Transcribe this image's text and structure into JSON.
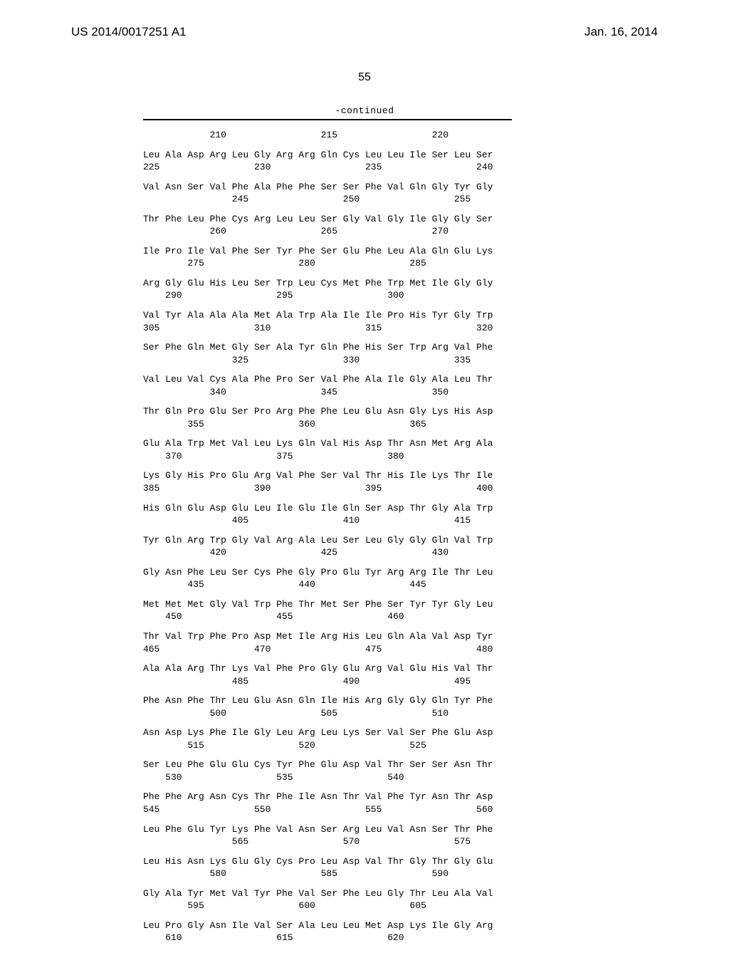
{
  "header": {
    "publication_number": "US 2014/0017251 A1",
    "date": "Jan. 16, 2014"
  },
  "page_number": "55",
  "continued_label": "-continued",
  "sequence_rows": [
    {
      "seq": "            210                 215                 220",
      "pos": ""
    },
    {
      "seq": "Leu Ala Asp Arg Leu Gly Arg Arg Gln Cys Leu Leu Ile Ser Leu Ser",
      "pos": "225                 230                 235                 240"
    },
    {
      "seq": "Val Asn Ser Val Phe Ala Phe Phe Ser Ser Phe Val Gln Gly Tyr Gly",
      "pos": "                245                 250                 255"
    },
    {
      "seq": "Thr Phe Leu Phe Cys Arg Leu Leu Ser Gly Val Gly Ile Gly Gly Ser",
      "pos": "            260                 265                 270"
    },
    {
      "seq": "Ile Pro Ile Val Phe Ser Tyr Phe Ser Glu Phe Leu Ala Gln Glu Lys",
      "pos": "        275                 280                 285"
    },
    {
      "seq": "Arg Gly Glu His Leu Ser Trp Leu Cys Met Phe Trp Met Ile Gly Gly",
      "pos": "    290                 295                 300"
    },
    {
      "seq": "Val Tyr Ala Ala Ala Met Ala Trp Ala Ile Ile Pro His Tyr Gly Trp",
      "pos": "305                 310                 315                 320"
    },
    {
      "seq": "Ser Phe Gln Met Gly Ser Ala Tyr Gln Phe His Ser Trp Arg Val Phe",
      "pos": "                325                 330                 335"
    },
    {
      "seq": "Val Leu Val Cys Ala Phe Pro Ser Val Phe Ala Ile Gly Ala Leu Thr",
      "pos": "            340                 345                 350"
    },
    {
      "seq": "Thr Gln Pro Glu Ser Pro Arg Phe Phe Leu Glu Asn Gly Lys His Asp",
      "pos": "        355                 360                 365"
    },
    {
      "seq": "Glu Ala Trp Met Val Leu Lys Gln Val His Asp Thr Asn Met Arg Ala",
      "pos": "    370                 375                 380"
    },
    {
      "seq": "Lys Gly His Pro Glu Arg Val Phe Ser Val Thr His Ile Lys Thr Ile",
      "pos": "385                 390                 395                 400"
    },
    {
      "seq": "His Gln Glu Asp Glu Leu Ile Glu Ile Gln Ser Asp Thr Gly Ala Trp",
      "pos": "                405                 410                 415"
    },
    {
      "seq": "Tyr Gln Arg Trp Gly Val Arg Ala Leu Ser Leu Gly Gly Gln Val Trp",
      "pos": "            420                 425                 430"
    },
    {
      "seq": "Gly Asn Phe Leu Ser Cys Phe Gly Pro Glu Tyr Arg Arg Ile Thr Leu",
      "pos": "        435                 440                 445"
    },
    {
      "seq": "Met Met Met Gly Val Trp Phe Thr Met Ser Phe Ser Tyr Tyr Gly Leu",
      "pos": "    450                 455                 460"
    },
    {
      "seq": "Thr Val Trp Phe Pro Asp Met Ile Arg His Leu Gln Ala Val Asp Tyr",
      "pos": "465                 470                 475                 480"
    },
    {
      "seq": "Ala Ala Arg Thr Lys Val Phe Pro Gly Glu Arg Val Glu His Val Thr",
      "pos": "                485                 490                 495"
    },
    {
      "seq": "Phe Asn Phe Thr Leu Glu Asn Gln Ile His Arg Gly Gly Gln Tyr Phe",
      "pos": "            500                 505                 510"
    },
    {
      "seq": "Asn Asp Lys Phe Ile Gly Leu Arg Leu Lys Ser Val Ser Phe Glu Asp",
      "pos": "        515                 520                 525"
    },
    {
      "seq": "Ser Leu Phe Glu Glu Cys Tyr Phe Glu Asp Val Thr Ser Ser Asn Thr",
      "pos": "    530                 535                 540"
    },
    {
      "seq": "Phe Phe Arg Asn Cys Thr Phe Ile Asn Thr Val Phe Tyr Asn Thr Asp",
      "pos": "545                 550                 555                 560"
    },
    {
      "seq": "Leu Phe Glu Tyr Lys Phe Val Asn Ser Arg Leu Val Asn Ser Thr Phe",
      "pos": "                565                 570                 575"
    },
    {
      "seq": "Leu His Asn Lys Glu Gly Cys Pro Leu Asp Val Thr Gly Thr Gly Glu",
      "pos": "            580                 585                 590"
    },
    {
      "seq": "Gly Ala Tyr Met Val Tyr Phe Val Ser Phe Leu Gly Thr Leu Ala Val",
      "pos": "        595                 600                 605"
    },
    {
      "seq": "Leu Pro Gly Asn Ile Val Ser Ala Leu Leu Met Asp Lys Ile Gly Arg",
      "pos": "    610                 615                 620"
    }
  ]
}
